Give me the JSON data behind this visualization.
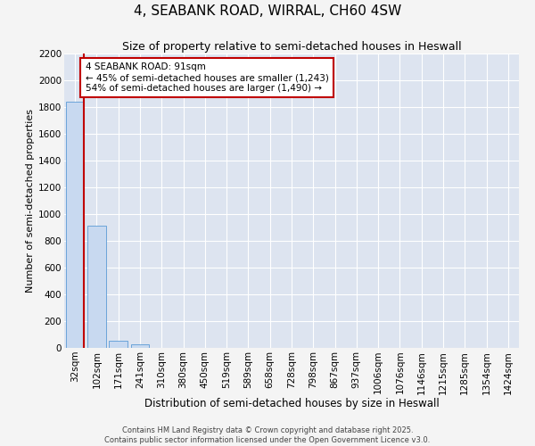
{
  "title": "4, SEABANK ROAD, WIRRAL, CH60 4SW",
  "subtitle": "Size of property relative to semi-detached houses in Heswall",
  "xlabel": "Distribution of semi-detached houses by size in Heswall",
  "ylabel": "Number of semi-detached properties",
  "categories": [
    "32sqm",
    "102sqm",
    "171sqm",
    "241sqm",
    "310sqm",
    "380sqm",
    "450sqm",
    "519sqm",
    "589sqm",
    "658sqm",
    "728sqm",
    "798sqm",
    "867sqm",
    "937sqm",
    "1006sqm",
    "1076sqm",
    "1146sqm",
    "1215sqm",
    "1285sqm",
    "1354sqm",
    "1424sqm"
  ],
  "values": [
    1843,
    912,
    52,
    25,
    0,
    0,
    0,
    0,
    0,
    0,
    0,
    0,
    0,
    0,
    0,
    0,
    0,
    0,
    0,
    0,
    0
  ],
  "bar_color": "#c8d9f0",
  "bar_edge_color": "#5b9bd5",
  "subject_line_color": "#c00000",
  "annotation_text": "4 SEABANK ROAD: 91sqm\n← 45% of semi-detached houses are smaller (1,243)\n54% of semi-detached houses are larger (1,490) →",
  "annotation_box_color": "#ffffff",
  "annotation_box_edge_color": "#c00000",
  "ylim": [
    0,
    2200
  ],
  "yticks": [
    0,
    200,
    400,
    600,
    800,
    1000,
    1200,
    1400,
    1600,
    1800,
    2000,
    2200
  ],
  "figure_bg_color": "#f4f4f4",
  "plot_bg_color": "#dde4f0",
  "grid_color": "#ffffff",
  "footer_line1": "Contains HM Land Registry data © Crown copyright and database right 2025.",
  "footer_line2": "Contains public sector information licensed under the Open Government Licence v3.0.",
  "title_fontsize": 11,
  "subtitle_fontsize": 9,
  "xlabel_fontsize": 8.5,
  "ylabel_fontsize": 8,
  "tick_fontsize": 7.5,
  "annot_fontsize": 7.5,
  "footer_fontsize": 6
}
